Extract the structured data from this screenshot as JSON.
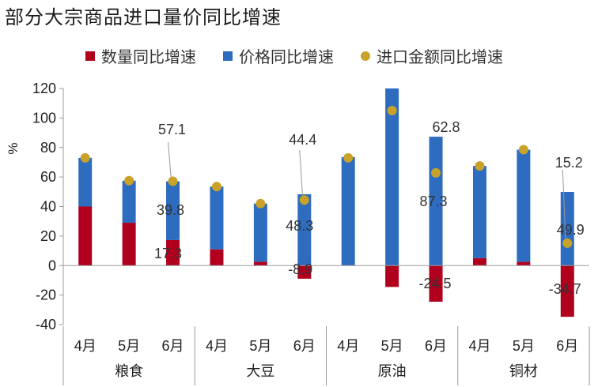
{
  "page": {
    "title": "部分大宗商品进口量价同比增速"
  },
  "colors": {
    "quantity": "#B0001E",
    "price": "#2E6CC0",
    "amount": "#C9A22A",
    "axis": "#999999",
    "text": "#222222"
  },
  "chart_data": {
    "type": "bar",
    "title": "部分大宗商品进口量价同比增速",
    "ylabel": "%",
    "ylim": [
      -40,
      120
    ],
    "yticks": [
      -40,
      -20,
      0,
      20,
      40,
      60,
      80,
      100,
      120
    ],
    "groups": [
      {
        "label": "粮食",
        "months": [
          "4月",
          "5月",
          "6月"
        ]
      },
      {
        "label": "大豆",
        "months": [
          "4月",
          "5月",
          "6月"
        ]
      },
      {
        "label": "原油",
        "months": [
          "4月",
          "5月",
          "6月"
        ]
      },
      {
        "label": "铜材",
        "months": [
          "4月",
          "5月",
          "6月"
        ]
      }
    ],
    "series": [
      {
        "name": "数量同比增速",
        "kind": "bar",
        "color": "#B0001E",
        "values": [
          40,
          29,
          17.3,
          11,
          2.5,
          -8.9,
          0,
          -14.5,
          -24.5,
          5,
          2.5,
          -34.7
        ]
      },
      {
        "name": "价格同比增速",
        "kind": "bar",
        "color": "#2E6CC0",
        "values": [
          33,
          28.5,
          39.8,
          42.5,
          39.5,
          48.3,
          73.5,
          120,
          87.3,
          62.5,
          76,
          49.9
        ]
      },
      {
        "name": "进口金额同比增速",
        "kind": "dot",
        "color": "#C9A22A",
        "values": [
          73,
          57.5,
          57.1,
          53.5,
          42,
          44.4,
          73,
          105,
          62.8,
          67.5,
          78.5,
          15.2
        ]
      }
    ],
    "data_labels": [
      {
        "index": 2,
        "series": "quantity",
        "text": "17.3"
      },
      {
        "index": 2,
        "series": "price",
        "text": "39.8"
      },
      {
        "index": 2,
        "series": "amount",
        "text": "57.1"
      },
      {
        "index": 5,
        "series": "quantity",
        "text": "-8.9"
      },
      {
        "index": 5,
        "series": "price",
        "text": "48.3"
      },
      {
        "index": 5,
        "series": "amount",
        "text": "44.4"
      },
      {
        "index": 8,
        "series": "quantity",
        "text": "-24.5"
      },
      {
        "index": 8,
        "series": "price",
        "text": "87.3"
      },
      {
        "index": 8,
        "series": "amount",
        "text": "62.8"
      },
      {
        "index": 11,
        "series": "quantity",
        "text": "-34.7"
      },
      {
        "index": 11,
        "series": "price",
        "text": "49.9"
      },
      {
        "index": 11,
        "series": "amount",
        "text": "15.2"
      }
    ]
  }
}
